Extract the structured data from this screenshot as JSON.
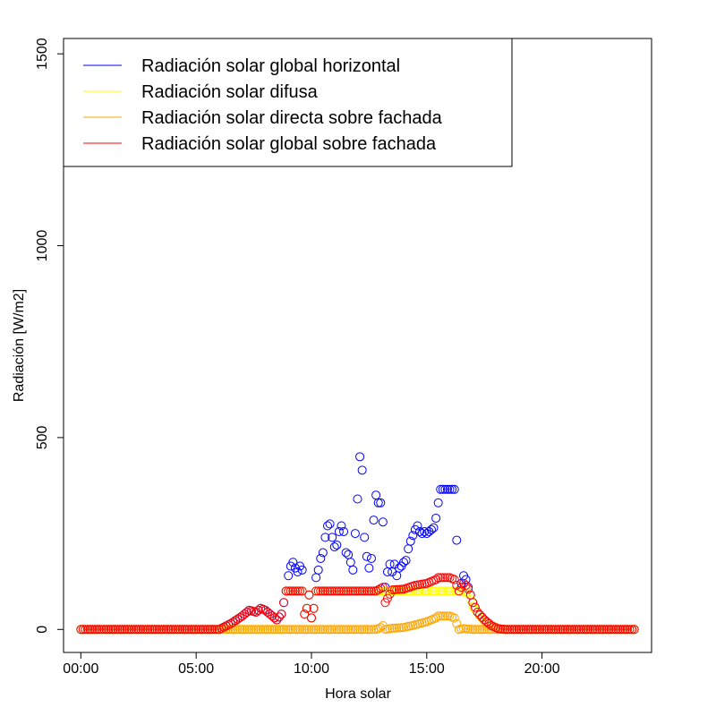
{
  "chart_data": {
    "type": "scatter",
    "xlabel": "Hora solar",
    "ylabel": "Radiación [W/m2]",
    "xlim": [
      -0.75,
      24.75
    ],
    "ylim": [
      -60,
      1540
    ],
    "x_ticks": [
      {
        "value": 0,
        "label": "00:00"
      },
      {
        "value": 5,
        "label": "05:00"
      },
      {
        "value": 10,
        "label": "10:00"
      },
      {
        "value": 15,
        "label": "15:00"
      },
      {
        "value": 20,
        "label": "20:00"
      }
    ],
    "y_ticks": [
      {
        "value": 0,
        "label": "0"
      },
      {
        "value": 500,
        "label": "500"
      },
      {
        "value": 1000,
        "label": "1000"
      },
      {
        "value": 1500,
        "label": "1500"
      }
    ],
    "legend_position": "top-left",
    "series": [
      {
        "name": "Radiación solar global horizontal",
        "color": "#0000ff",
        "key_points": [
          [
            0,
            0
          ],
          [
            6,
            0
          ],
          [
            6.5,
            15
          ],
          [
            7,
            35
          ],
          [
            7.3,
            50
          ],
          [
            7.6,
            45
          ],
          [
            7.8,
            55
          ],
          [
            8,
            50
          ],
          [
            8.2,
            40
          ],
          [
            8.5,
            25
          ],
          [
            8.7,
            40
          ],
          [
            8.9,
            100
          ],
          [
            9,
            140
          ],
          [
            9.1,
            165
          ],
          [
            9.2,
            175
          ],
          [
            9.3,
            160
          ],
          [
            9.4,
            150
          ],
          [
            9.5,
            165
          ],
          [
            9.6,
            155
          ],
          [
            9.7,
            40
          ],
          [
            9.8,
            55
          ],
          [
            9.9,
            90
          ],
          [
            10,
            30
          ],
          [
            10.1,
            55
          ],
          [
            10.2,
            135
          ],
          [
            10.3,
            155
          ],
          [
            10.4,
            185
          ],
          [
            10.5,
            200
          ],
          [
            10.6,
            240
          ],
          [
            10.7,
            270
          ],
          [
            10.8,
            275
          ],
          [
            10.9,
            240
          ],
          [
            11,
            215
          ],
          [
            11.1,
            220
          ],
          [
            11.2,
            255
          ],
          [
            11.3,
            270
          ],
          [
            11.4,
            255
          ],
          [
            11.5,
            200
          ],
          [
            11.6,
            195
          ],
          [
            11.7,
            175
          ],
          [
            11.8,
            155
          ],
          [
            11.9,
            250
          ],
          [
            12,
            340
          ],
          [
            12.1,
            450
          ],
          [
            12.2,
            415
          ],
          [
            12.3,
            240
          ],
          [
            12.4,
            190
          ],
          [
            12.5,
            160
          ],
          [
            12.6,
            185
          ],
          [
            12.7,
            285
          ],
          [
            12.8,
            350
          ],
          [
            12.9,
            330
          ],
          [
            13,
            330
          ],
          [
            13.1,
            280
          ],
          [
            13.2,
            110
          ],
          [
            13.3,
            150
          ],
          [
            13.4,
            170
          ],
          [
            13.5,
            150
          ],
          [
            13.6,
            170
          ],
          [
            13.7,
            140
          ],
          [
            13.8,
            160
          ],
          [
            13.9,
            165
          ],
          [
            14,
            175
          ],
          [
            14.1,
            180
          ],
          [
            14.2,
            210
          ],
          [
            14.3,
            230
          ],
          [
            14.4,
            245
          ],
          [
            14.5,
            260
          ],
          [
            14.6,
            270
          ],
          [
            14.7,
            255
          ],
          [
            14.8,
            250
          ],
          [
            14.9,
            255
          ],
          [
            15,
            250
          ],
          [
            15.1,
            255
          ],
          [
            15.2,
            260
          ],
          [
            15.3,
            265
          ],
          [
            15.4,
            290
          ],
          [
            15.5,
            330
          ],
          [
            15.6,
            365
          ],
          [
            16,
            365
          ],
          [
            16.2,
            365
          ],
          [
            16.4,
            100
          ],
          [
            16.5,
            120
          ],
          [
            16.6,
            140
          ],
          [
            16.7,
            130
          ],
          [
            16.8,
            110
          ],
          [
            16.9,
            90
          ],
          [
            17,
            70
          ],
          [
            17.2,
            45
          ],
          [
            17.5,
            25
          ],
          [
            17.8,
            10
          ],
          [
            18.1,
            2
          ],
          [
            18.4,
            0
          ],
          [
            24,
            0
          ]
        ]
      },
      {
        "name": "Radiación solar difusa",
        "color": "#ffff00",
        "key_points": [
          [
            0,
            0
          ],
          [
            6,
            0
          ],
          [
            8.8,
            0
          ],
          [
            8.9,
            100
          ],
          [
            9.6,
            100
          ],
          [
            9.7,
            40
          ],
          [
            9.8,
            55
          ],
          [
            9.9,
            90
          ],
          [
            10,
            30
          ],
          [
            10.1,
            55
          ],
          [
            10.2,
            100
          ],
          [
            14.5,
            100
          ],
          [
            16.2,
            100
          ],
          [
            16.4,
            100
          ],
          [
            16.8,
            95
          ],
          [
            17,
            60
          ],
          [
            17.5,
            20
          ],
          [
            18.1,
            2
          ],
          [
            18.4,
            0
          ],
          [
            24,
            0
          ]
        ]
      },
      {
        "name": "Radiación solar directa sobre fachada",
        "color": "#ffa500",
        "key_points": [
          [
            0,
            0
          ],
          [
            12.8,
            0
          ],
          [
            13,
            5
          ],
          [
            13.1,
            10
          ],
          [
            13.2,
            0
          ],
          [
            13.5,
            3
          ],
          [
            14,
            5
          ],
          [
            14.5,
            12
          ],
          [
            15,
            20
          ],
          [
            15.4,
            30
          ],
          [
            15.5,
            35
          ],
          [
            16,
            35
          ],
          [
            16.2,
            30
          ],
          [
            16.4,
            0
          ],
          [
            16.6,
            2
          ],
          [
            17,
            0
          ],
          [
            24,
            0
          ]
        ]
      },
      {
        "name": "Radiación solar global sobre fachada",
        "color": "#ff0000",
        "key_points": [
          [
            0,
            0
          ],
          [
            6,
            0
          ],
          [
            6.5,
            15
          ],
          [
            7,
            35
          ],
          [
            7.3,
            50
          ],
          [
            7.6,
            45
          ],
          [
            7.8,
            55
          ],
          [
            8,
            50
          ],
          [
            8.2,
            40
          ],
          [
            8.5,
            25
          ],
          [
            8.7,
            40
          ],
          [
            8.9,
            100
          ],
          [
            9.6,
            100
          ],
          [
            9.7,
            40
          ],
          [
            9.8,
            55
          ],
          [
            9.9,
            90
          ],
          [
            10,
            30
          ],
          [
            10.1,
            55
          ],
          [
            10.2,
            100
          ],
          [
            12.8,
            100
          ],
          [
            13.1,
            110
          ],
          [
            13.2,
            70
          ],
          [
            13.5,
            103
          ],
          [
            14,
            105
          ],
          [
            14.5,
            115
          ],
          [
            15,
            120
          ],
          [
            15.4,
            130
          ],
          [
            15.5,
            135
          ],
          [
            16,
            135
          ],
          [
            16.2,
            130
          ],
          [
            16.4,
            100
          ],
          [
            16.5,
            110
          ],
          [
            16.6,
            120
          ],
          [
            16.7,
            115
          ],
          [
            16.8,
            105
          ],
          [
            16.9,
            90
          ],
          [
            17,
            70
          ],
          [
            17.2,
            45
          ],
          [
            17.5,
            25
          ],
          [
            17.8,
            10
          ],
          [
            18.1,
            2
          ],
          [
            18.4,
            0
          ],
          [
            24,
            0
          ]
        ]
      }
    ]
  }
}
